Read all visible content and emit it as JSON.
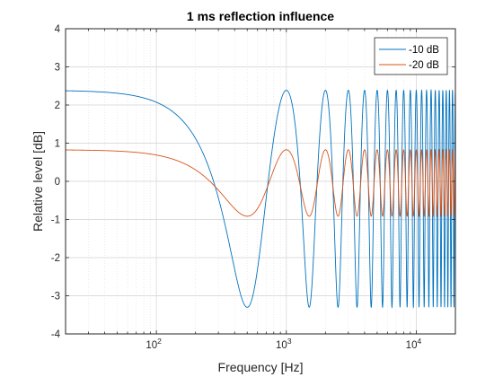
{
  "chart_data": {
    "type": "line",
    "title": "1 ms reflection influence",
    "xlabel": "Frequency [Hz]",
    "ylabel": "Relative level [dB]",
    "xscale": "log",
    "xlim": [
      20,
      20000
    ],
    "ylim": [
      -4,
      4
    ],
    "yticks": [
      "-4",
      "-3",
      "-2",
      "-1",
      "0",
      "1",
      "2",
      "3",
      "4"
    ],
    "xtick_labels": [
      {
        "base": "10",
        "exp": "2",
        "value": 100
      },
      {
        "base": "10",
        "exp": "3",
        "value": 1000
      },
      {
        "base": "10",
        "exp": "4",
        "value": 10000
      }
    ],
    "grid": true,
    "minor_grid": true,
    "legend_position": "top-right",
    "reflection_delay_ms": 1,
    "series": [
      {
        "name": "-10 dB",
        "reflection_level_db": -10,
        "color": "#0072BD",
        "max": 2.28,
        "min": -3.1
      },
      {
        "name": "-20 dB",
        "reflection_level_db": -20,
        "color": "#D95319",
        "max": 0.83,
        "min": -0.92
      }
    ]
  }
}
